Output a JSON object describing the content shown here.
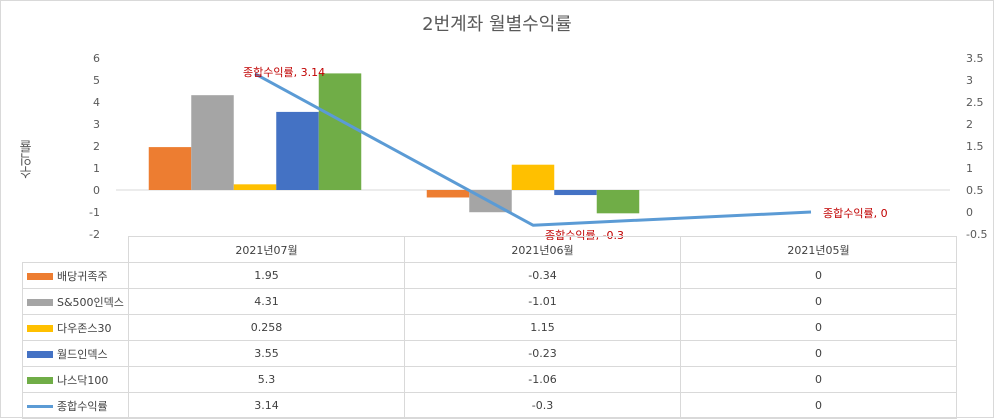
{
  "chart_data": {
    "type": "bar",
    "title": "2번계좌 월별수익률",
    "ylabel": "수익률",
    "categories": [
      "2021년07월",
      "2021년06월",
      "2021년05월"
    ],
    "ylim": [
      -2,
      6
    ],
    "y2lim": [
      -0.5,
      3.5
    ],
    "yticks": [
      "6",
      "5",
      "4",
      "3",
      "2",
      "1",
      "0",
      "-1",
      "-2"
    ],
    "y2ticks": [
      "3.5",
      "3",
      "2.5",
      "2",
      "1.5",
      "1",
      "0.5",
      "0",
      "-0.5"
    ],
    "series": [
      {
        "name": "배당귀족주",
        "color": "#ed7d31",
        "values": [
          1.95,
          -0.34,
          0
        ],
        "labels": [
          "1.95",
          "-0.34",
          "0"
        ]
      },
      {
        "name": "S&500인덱스",
        "color": "#a5a5a5",
        "values": [
          4.31,
          -1.01,
          0
        ],
        "labels": [
          "4.31",
          "-1.01",
          "0"
        ]
      },
      {
        "name": "다우존스30",
        "color": "#ffc000",
        "values": [
          0.258,
          1.15,
          0
        ],
        "labels": [
          "0.258",
          "1.15",
          "0"
        ]
      },
      {
        "name": "월드인덱스",
        "color": "#4472c4",
        "values": [
          3.55,
          -0.23,
          0
        ],
        "labels": [
          "3.55",
          "-0.23",
          "0"
        ]
      },
      {
        "name": "나스닥100",
        "color": "#70ad47",
        "values": [
          5.3,
          -1.06,
          0
        ],
        "labels": [
          "5.3",
          "-1.06",
          "0"
        ]
      }
    ],
    "line_series": {
      "name": "종합수익률",
      "color": "#5b9bd5",
      "axis": "secondary",
      "values": [
        3.14,
        -0.3,
        0
      ],
      "labels": [
        "3.14",
        "-0.3",
        "0"
      ],
      "annotations": [
        "종합수익률, 3.14",
        "종합수익률, -0.3",
        "종합수익률, 0"
      ],
      "annotation_color": "#c00000"
    },
    "grid": false,
    "legend": "data-table"
  }
}
